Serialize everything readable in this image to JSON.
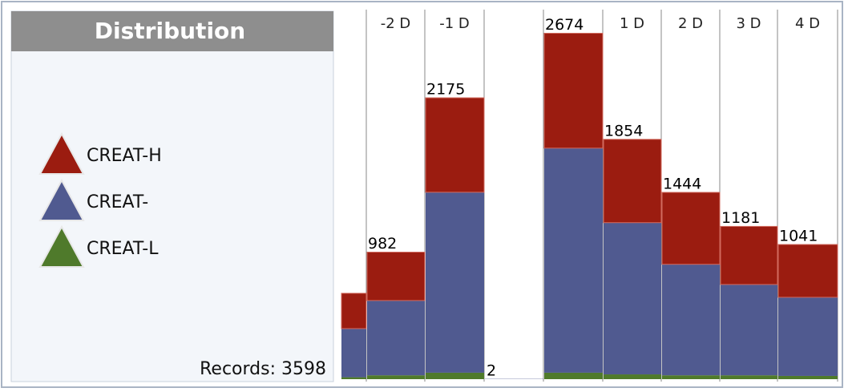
{
  "panel": {
    "title": "Distribution",
    "records": "Records: 3598"
  },
  "chart_data": {
    "type": "stacked-bar",
    "categories": [
      null,
      "-2 D",
      "-1 D",
      null,
      null,
      "1 D",
      "2 D",
      "3 D",
      "4 D"
    ],
    "series": [
      {
        "name": "CREAT-H",
        "color": "#9b1c10",
        "values": [
          273,
          374,
          730,
          0,
          888,
          644,
          556,
          449,
          408
        ]
      },
      {
        "name": "CREAT-",
        "color": "#505a90",
        "values": [
          376,
          578,
          1395,
          2,
          1736,
          1173,
          858,
          702,
          608
        ]
      },
      {
        "name": "CREAT-L",
        "color": "#4f7a2b",
        "values": [
          15,
          30,
          50,
          0,
          50,
          37,
          30,
          30,
          25
        ]
      }
    ],
    "totals": [
      null,
      982,
      2175,
      2,
      2674,
      1854,
      1444,
      1181,
      1041
    ],
    "ylim": [
      0,
      2900
    ]
  }
}
